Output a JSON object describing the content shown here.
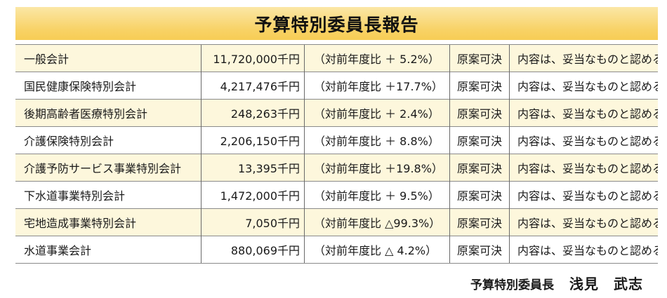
{
  "title": "予算特別委員長報告",
  "rows": [
    {
      "name": "一般会計",
      "amount": "11,720,000千円",
      "ratio": "（対前年度比 ＋  5.2%）",
      "result": "原案可決",
      "opinion": "内容は、妥当なものと認める"
    },
    {
      "name": "国民健康保険特別会計",
      "amount": "4,217,476千円",
      "ratio": "（対前年度比 ＋17.7%）",
      "result": "原案可決",
      "opinion": "内容は、妥当なものと認める"
    },
    {
      "name": "後期高齢者医療特別会計",
      "amount": "248,263千円",
      "ratio": "（対前年度比 ＋  2.4%）",
      "result": "原案可決",
      "opinion": "内容は、妥当なものと認める"
    },
    {
      "name": "介護保険特別会計",
      "amount": "2,206,150千円",
      "ratio": "（対前年度比 ＋  8.8%）",
      "result": "原案可決",
      "opinion": "内容は、妥当なものと認める"
    },
    {
      "name": "介護予防サービス事業特別会計",
      "amount": "13,395千円",
      "ratio": "（対前年度比 ＋19.8%）",
      "result": "原案可決",
      "opinion": "内容は、妥当なものと認める"
    },
    {
      "name": "下水道事業特別会計",
      "amount": "1,472,000千円",
      "ratio": "（対前年度比 ＋  9.5%）",
      "result": "原案可決",
      "opinion": "内容は、妥当なものと認める"
    },
    {
      "name": "宅地造成事業特別会計",
      "amount": "7,050千円",
      "ratio": "（対前年度比 △99.3%）",
      "result": "原案可決",
      "opinion": "内容は、妥当なものと認める"
    },
    {
      "name": "水道事業会計",
      "amount": "880,069千円",
      "ratio": "（対前年度比 △  4.2%）",
      "result": "原案可決",
      "opinion": "内容は、妥当なものと認める"
    }
  ],
  "signature": {
    "role": "予算特別委員長",
    "name": "浅見　武志"
  }
}
